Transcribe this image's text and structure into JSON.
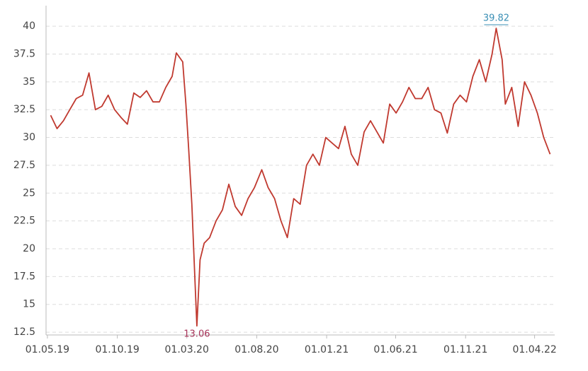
{
  "chart_data": {
    "type": "line",
    "x": [
      "08.05.19",
      "22.05.19",
      "05.06.19",
      "19.06.19",
      "03.07.19",
      "17.07.19",
      "31.07.19",
      "14.08.19",
      "28.08.19",
      "11.09.19",
      "25.09.19",
      "09.10.19",
      "23.10.19",
      "06.11.19",
      "20.11.19",
      "04.12.19",
      "18.12.19",
      "01.01.20",
      "15.01.20",
      "29.01.20",
      "07.02.20",
      "21.02.20",
      "28.02.20",
      "05.03.20",
      "12.03.20",
      "19.03.20",
      "23.03.20",
      "30.03.20",
      "08.04.20",
      "20.04.20",
      "04.05.20",
      "18.05.20",
      "01.06.20",
      "15.06.20",
      "29.06.20",
      "13.07.20",
      "27.07.20",
      "12.08.20",
      "26.08.20",
      "09.09.20",
      "23.09.20",
      "07.10.20",
      "21.10.20",
      "04.11.20",
      "18.11.20",
      "02.12.20",
      "16.12.20",
      "30.12.20",
      "13.01.21",
      "27.01.21",
      "10.02.21",
      "24.02.21",
      "10.03.21",
      "24.03.21",
      "07.04.21",
      "21.04.21",
      "05.05.21",
      "19.05.21",
      "02.06.21",
      "16.06.21",
      "30.06.21",
      "14.07.21",
      "28.07.21",
      "11.08.21",
      "25.08.21",
      "08.09.21",
      "22.09.21",
      "06.10.21",
      "20.10.21",
      "03.11.21",
      "17.11.21",
      "01.12.21",
      "15.12.21",
      "29.12.21",
      "07.01.22",
      "20.01.22",
      "27.01.22",
      "10.02.22",
      "24.02.22",
      "10.03.22",
      "24.03.22",
      "07.04.22",
      "21.04.22",
      "05.05.22"
    ],
    "series": [
      {
        "color": "#c0392f",
        "values": [
          32,
          30.8,
          31.5,
          32.5,
          33.5,
          33.8,
          35.8,
          32.5,
          32.8,
          33.8,
          32.5,
          31.8,
          31.2,
          34,
          33.6,
          34.2,
          33.2,
          33.2,
          34.5,
          35.5,
          37.6,
          36.8,
          33,
          29,
          24,
          17,
          13.06,
          19,
          20.5,
          21,
          22.5,
          23.5,
          25.8,
          23.8,
          23,
          24.5,
          25.5,
          27.1,
          25.5,
          24.5,
          22.5,
          21,
          24.5,
          24,
          27.5,
          28.5,
          27.5,
          30,
          29.5,
          29,
          31,
          28.5,
          27.5,
          30.5,
          31.5,
          30.5,
          29.5,
          33,
          32.2,
          33.2,
          34.5,
          33.5,
          33.5,
          34.5,
          32.5,
          32.2,
          30.4,
          33,
          33.8,
          33.2,
          35.5,
          37,
          35,
          37.5,
          39.82,
          37,
          33,
          34.5,
          31,
          35,
          33.8,
          32.2,
          30,
          28.5
        ]
      }
    ],
    "xlim": [
      "28.04.19",
      "15.05.22"
    ],
    "xticks": [
      "01.05.19",
      "01.10.19",
      "01.03.20",
      "01.08.20",
      "01.01.21",
      "01.06.21",
      "01.11.21",
      "01.04.22"
    ],
    "ylim": [
      12.25,
      41.85
    ],
    "yticks": [
      12.5,
      15,
      17.5,
      20,
      22.5,
      25,
      27.5,
      30,
      32.5,
      35,
      37.5,
      40
    ],
    "grid": true,
    "annotations": [
      {
        "x": "07.01.22",
        "value": 39.82,
        "color": "#3a8fb5"
      },
      {
        "x": "23.03.20",
        "value": 13.06,
        "color": "#a8345a"
      }
    ]
  }
}
